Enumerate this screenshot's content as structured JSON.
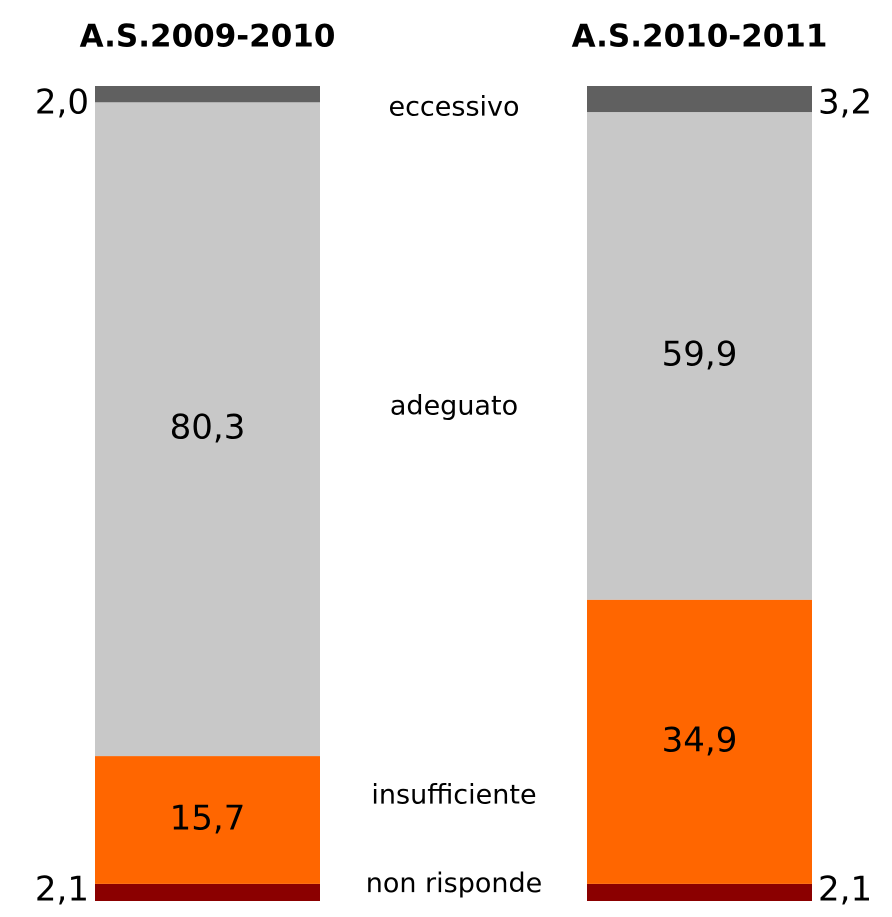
{
  "chart_data": {
    "type": "stacked_bar",
    "categories": [
      "A.S.2009-2010",
      "A.S.2010-2011"
    ],
    "series": [
      {
        "name": "non risponde",
        "color": "#8b0000",
        "values": [
          2.1,
          2.1
        ],
        "value_labels": [
          "2,1",
          "2,1"
        ]
      },
      {
        "name": "insufficiente",
        "color": "#ff6600",
        "values": [
          15.7,
          34.9
        ],
        "value_labels": [
          "15,7",
          "34,9"
        ]
      },
      {
        "name": "adeguato",
        "color": "#c8c8c8",
        "values": [
          80.3,
          59.9
        ],
        "value_labels": [
          "80,3",
          "59,9"
        ]
      },
      {
        "name": "eccessivo",
        "color": "#606060",
        "values": [
          2.0,
          3.2
        ],
        "value_labels": [
          "2,0",
          "3,2"
        ]
      }
    ]
  }
}
